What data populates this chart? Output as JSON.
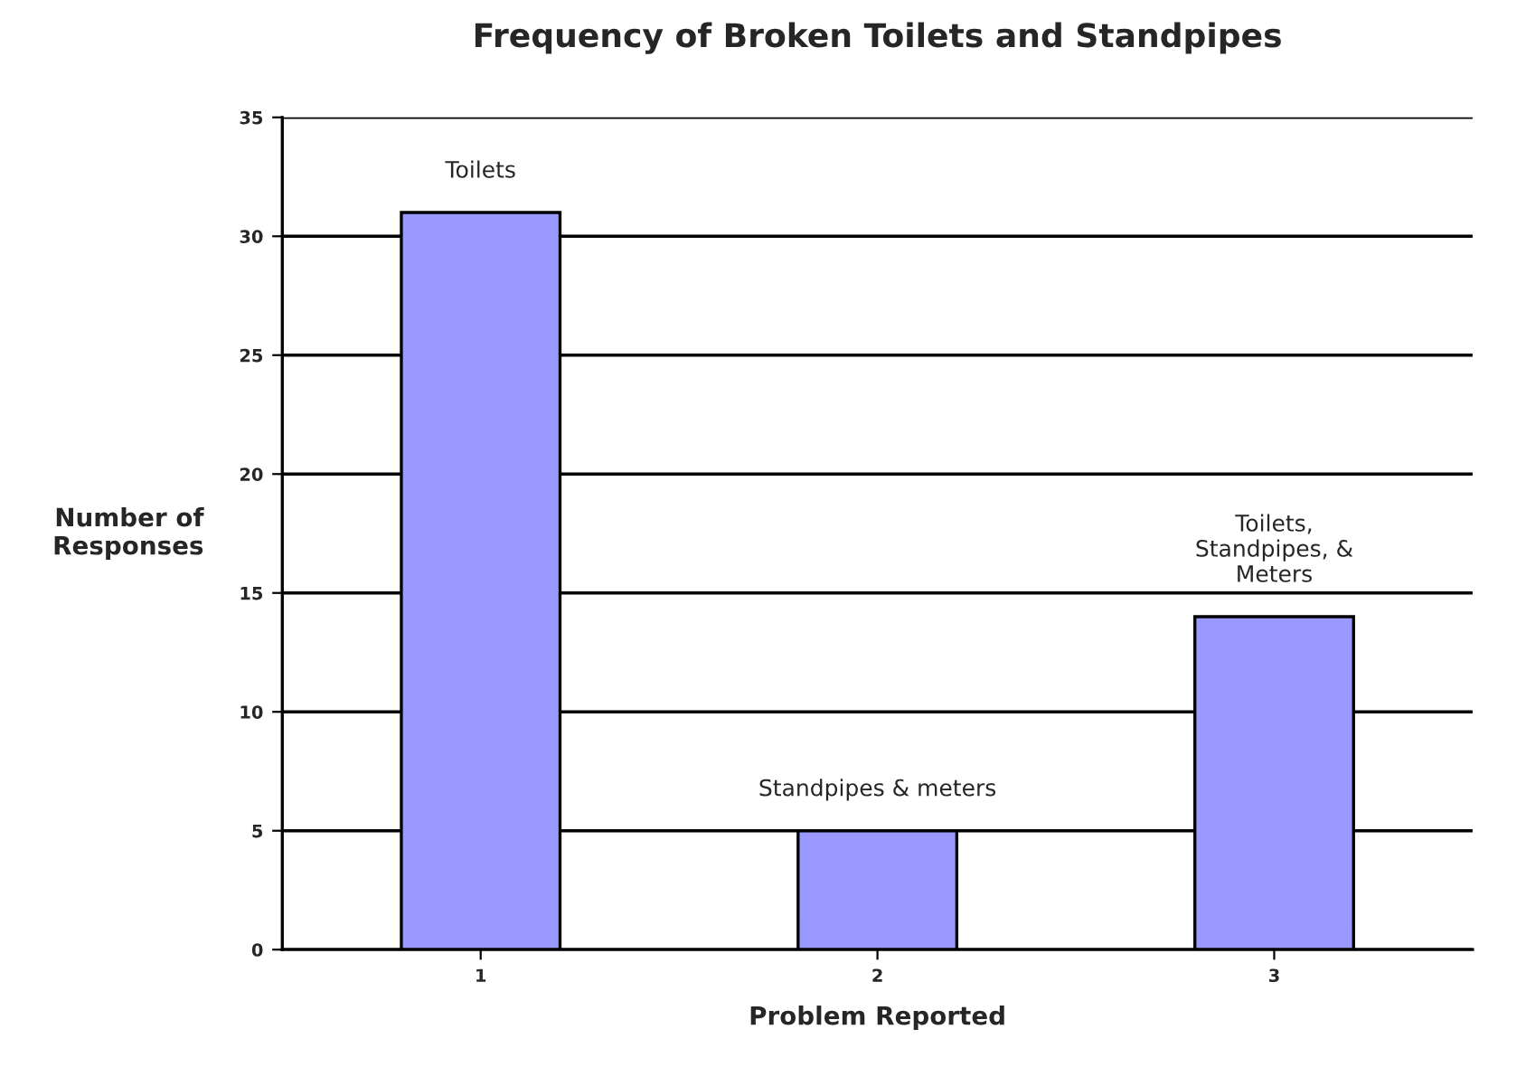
{
  "chart_data": {
    "type": "bar",
    "title": "Frequency of Broken Toilets and Standpipes",
    "xlabel": "Problem Reported",
    "ylabel": "Number of\nResponses",
    "categories": [
      "1",
      "2",
      "3"
    ],
    "values": [
      31,
      5,
      14
    ],
    "color": "#9999ff",
    "ylim": [
      0,
      35
    ],
    "yticks": [
      0,
      5,
      10,
      15,
      20,
      25,
      30,
      35
    ],
    "grid": "y",
    "annotations": [
      {
        "text": "Toilets",
        "x": "1",
        "y": 31
      },
      {
        "text": "Standpipes & meters",
        "x": "2",
        "y": 5
      },
      {
        "text": "Toilets,\nStandpipes, &\nMeters",
        "x": "3",
        "y": 14
      }
    ]
  }
}
